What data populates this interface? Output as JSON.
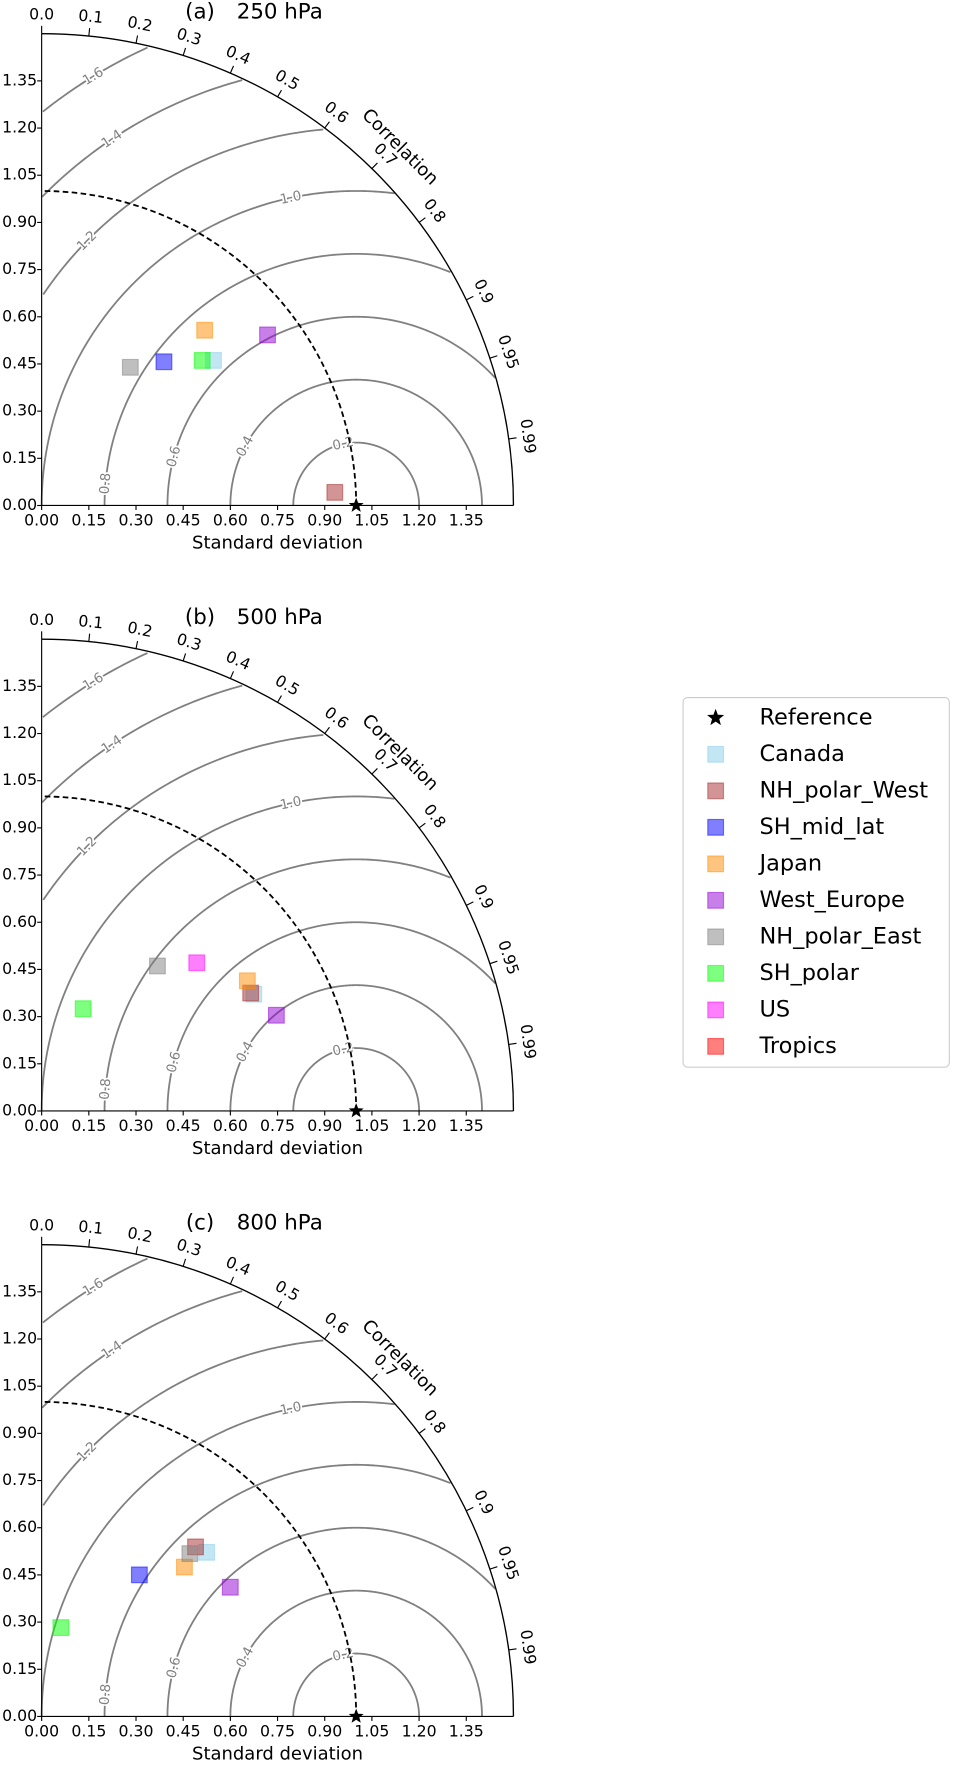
{
  "chart_data": [
    {
      "type": "taylor",
      "label": "(a)",
      "title": "250 hPa",
      "xlabel": "Standard deviation",
      "corr_label": "Correlation",
      "xlim": [
        0,
        1.5
      ],
      "ylim": [
        0,
        1.5
      ],
      "xticks": [
        {
          "value": 0,
          "label": "0.00"
        },
        {
          "value": 0.15,
          "label": "0.15"
        },
        {
          "value": 0.3,
          "label": "0.30"
        },
        {
          "value": 0.45,
          "label": "0.45"
        },
        {
          "value": 0.6,
          "label": "0.60"
        },
        {
          "value": 0.75,
          "label": "0.75"
        },
        {
          "value": 0.9,
          "label": "0.90"
        },
        {
          "value": 1.05,
          "label": "1.05"
        },
        {
          "value": 1.2,
          "label": "1.20"
        },
        {
          "value": 1.35,
          "label": "1.35"
        }
      ],
      "yticks": [
        {
          "value": 0,
          "label": "0.00"
        },
        {
          "value": 0.15,
          "label": "0.15"
        },
        {
          "value": 0.3,
          "label": "0.30"
        },
        {
          "value": 0.45,
          "label": "0.45"
        },
        {
          "value": 0.6,
          "label": "0.60"
        },
        {
          "value": 0.75,
          "label": "0.75"
        },
        {
          "value": 0.9,
          "label": "0.90"
        },
        {
          "value": 1.05,
          "label": "1.05"
        },
        {
          "value": 1.2,
          "label": "1.20"
        },
        {
          "value": 1.35,
          "label": "1.35"
        }
      ],
      "corr_ticks": [
        {
          "value": 0,
          "label": "0.0"
        },
        0.1,
        0.2,
        0.3,
        0.4,
        0.5,
        0.6,
        0.7,
        0.8,
        0.9,
        0.95,
        0.99
      ],
      "rms_contours": [
        0.2,
        0.4,
        0.6,
        0.8,
        {
          "value": 1.0,
          "label": "1.0"
        },
        1.2,
        1.4,
        1.6
      ],
      "reference": {
        "std": 1.0,
        "correlation": 1.0
      },
      "series": [
        {
          "std": 0.715,
          "correlation": 0.764
        },
        {
          "std": 0.933,
          "correlation": 0.999
        },
        {
          "std": 0.6,
          "correlation": 0.648
        },
        {
          "std": 0.761,
          "correlation": 0.681
        },
        {
          "std": 0.9,
          "correlation": 0.798
        },
        {
          "std": 0.522,
          "correlation": 0.54
        },
        {
          "std": 0.688,
          "correlation": 0.742
        },
        {
          "std": null,
          "correlation": null
        },
        {
          "std": null,
          "correlation": null
        }
      ]
    },
    {
      "type": "taylor",
      "label": "(b)",
      "title": "500 hPa",
      "xlabel": "Standard deviation",
      "corr_label": "Correlation",
      "xlim": [
        0,
        1.5
      ],
      "ylim": [
        0,
        1.5
      ],
      "xticks": [
        {
          "value": 0,
          "label": "0.00"
        },
        {
          "value": 0.15,
          "label": "0.15"
        },
        {
          "value": 0.3,
          "label": "0.30"
        },
        {
          "value": 0.45,
          "label": "0.45"
        },
        {
          "value": 0.6,
          "label": "0.60"
        },
        {
          "value": 0.75,
          "label": "0.75"
        },
        {
          "value": 0.9,
          "label": "0.90"
        },
        {
          "value": 1.05,
          "label": "1.05"
        },
        {
          "value": 1.2,
          "label": "1.20"
        },
        {
          "value": 1.35,
          "label": "1.35"
        }
      ],
      "yticks": [
        {
          "value": 0,
          "label": "0.00"
        },
        {
          "value": 0.15,
          "label": "0.15"
        },
        {
          "value": 0.3,
          "label": "0.30"
        },
        {
          "value": 0.45,
          "label": "0.45"
        },
        {
          "value": 0.6,
          "label": "0.60"
        },
        {
          "value": 0.75,
          "label": "0.75"
        },
        {
          "value": 0.9,
          "label": "0.90"
        },
        {
          "value": 1.05,
          "label": "1.05"
        },
        {
          "value": 1.2,
          "label": "1.20"
        },
        {
          "value": 1.35,
          "label": "1.35"
        }
      ],
      "corr_ticks": [
        {
          "value": 0,
          "label": "0.0"
        },
        0.1,
        0.2,
        0.3,
        0.4,
        0.5,
        0.6,
        0.7,
        0.8,
        0.9,
        0.95,
        0.99
      ],
      "rms_contours": [
        0.2,
        0.4,
        0.6,
        0.8,
        {
          "value": 1.0,
          "label": "1.0"
        },
        1.2,
        1.4,
        1.6
      ],
      "reference": {
        "std": 1.0,
        "correlation": 1.0
      },
      "series": [
        {
          "std": 0.77,
          "correlation": 0.876
        },
        {
          "std": 0.763,
          "correlation": 0.871
        },
        {
          "std": null,
          "correlation": null
        },
        {
          "std": 0.774,
          "correlation": 0.845
        },
        {
          "std": 0.806,
          "correlation": 0.926
        },
        {
          "std": 0.59,
          "correlation": 0.624
        },
        {
          "std": 0.351,
          "correlation": 0.376
        },
        {
          "std": 0.682,
          "correlation": 0.723
        },
        {
          "std": null,
          "correlation": null
        }
      ]
    },
    {
      "type": "taylor",
      "label": "(c)",
      "title": "800 hPa",
      "xlabel": "Standard deviation",
      "corr_label": "Correlation",
      "xlim": [
        0,
        1.5
      ],
      "ylim": [
        0,
        1.5
      ],
      "xticks": [
        {
          "value": 0,
          "label": "0.00"
        },
        {
          "value": 0.15,
          "label": "0.15"
        },
        {
          "value": 0.3,
          "label": "0.30"
        },
        {
          "value": 0.45,
          "label": "0.45"
        },
        {
          "value": 0.6,
          "label": "0.60"
        },
        {
          "value": 0.75,
          "label": "0.75"
        },
        {
          "value": 0.9,
          "label": "0.90"
        },
        {
          "value": 1.05,
          "label": "1.05"
        },
        {
          "value": 1.2,
          "label": "1.20"
        },
        {
          "value": 1.35,
          "label": "1.35"
        }
      ],
      "yticks": [
        {
          "value": 0,
          "label": "0.00"
        },
        {
          "value": 0.15,
          "label": "0.15"
        },
        {
          "value": 0.3,
          "label": "0.30"
        },
        {
          "value": 0.45,
          "label": "0.45"
        },
        {
          "value": 0.6,
          "label": "0.60"
        },
        {
          "value": 0.75,
          "label": "0.75"
        },
        {
          "value": 0.9,
          "label": "0.90"
        },
        {
          "value": 1.05,
          "label": "1.05"
        },
        {
          "value": 1.2,
          "label": "1.20"
        },
        {
          "value": 1.35,
          "label": "1.35"
        }
      ],
      "corr_ticks": [
        {
          "value": 0,
          "label": "0.0"
        },
        0.1,
        0.2,
        0.3,
        0.4,
        0.5,
        0.6,
        0.7,
        0.8,
        0.9,
        0.95,
        0.99
      ],
      "rms_contours": [
        0.2,
        0.4,
        0.6,
        0.8,
        {
          "value": 1.0,
          "label": "1.0"
        },
        1.2,
        1.4,
        1.6
      ],
      "reference": {
        "std": 1.0,
        "correlation": 1.0
      },
      "series": [
        {
          "std": 0.74,
          "correlation": 0.709
        },
        {
          "std": 0.728,
          "correlation": 0.672
        },
        {
          "std": 0.547,
          "correlation": 0.568
        },
        {
          "std": 0.657,
          "correlation": 0.691
        },
        {
          "std": 0.727,
          "correlation": 0.825
        },
        {
          "std": 0.7,
          "correlation": 0.673
        },
        {
          "std": 0.289,
          "correlation": 0.211
        },
        {
          "std": null,
          "correlation": null
        },
        {
          "std": null,
          "correlation": null
        }
      ]
    }
  ],
  "legend": {
    "position": "right",
    "reference": "Reference",
    "series": [
      {
        "name": "Canada",
        "color": "#87ceeb"
      },
      {
        "name": "NH_polar_West",
        "color": "#a52a2a"
      },
      {
        "name": "SH_mid_lat",
        "color": "#0000ff"
      },
      {
        "name": "Japan",
        "color": "#ff8c00"
      },
      {
        "name": "West_Europe",
        "color": "#9400d3"
      },
      {
        "name": "NH_polar_East",
        "color": "#808080"
      },
      {
        "name": "SH_polar",
        "color": "#00ff00"
      },
      {
        "name": "US",
        "color": "#ff00ff"
      },
      {
        "name": "Tropics",
        "color": "#ff0000"
      }
    ]
  }
}
